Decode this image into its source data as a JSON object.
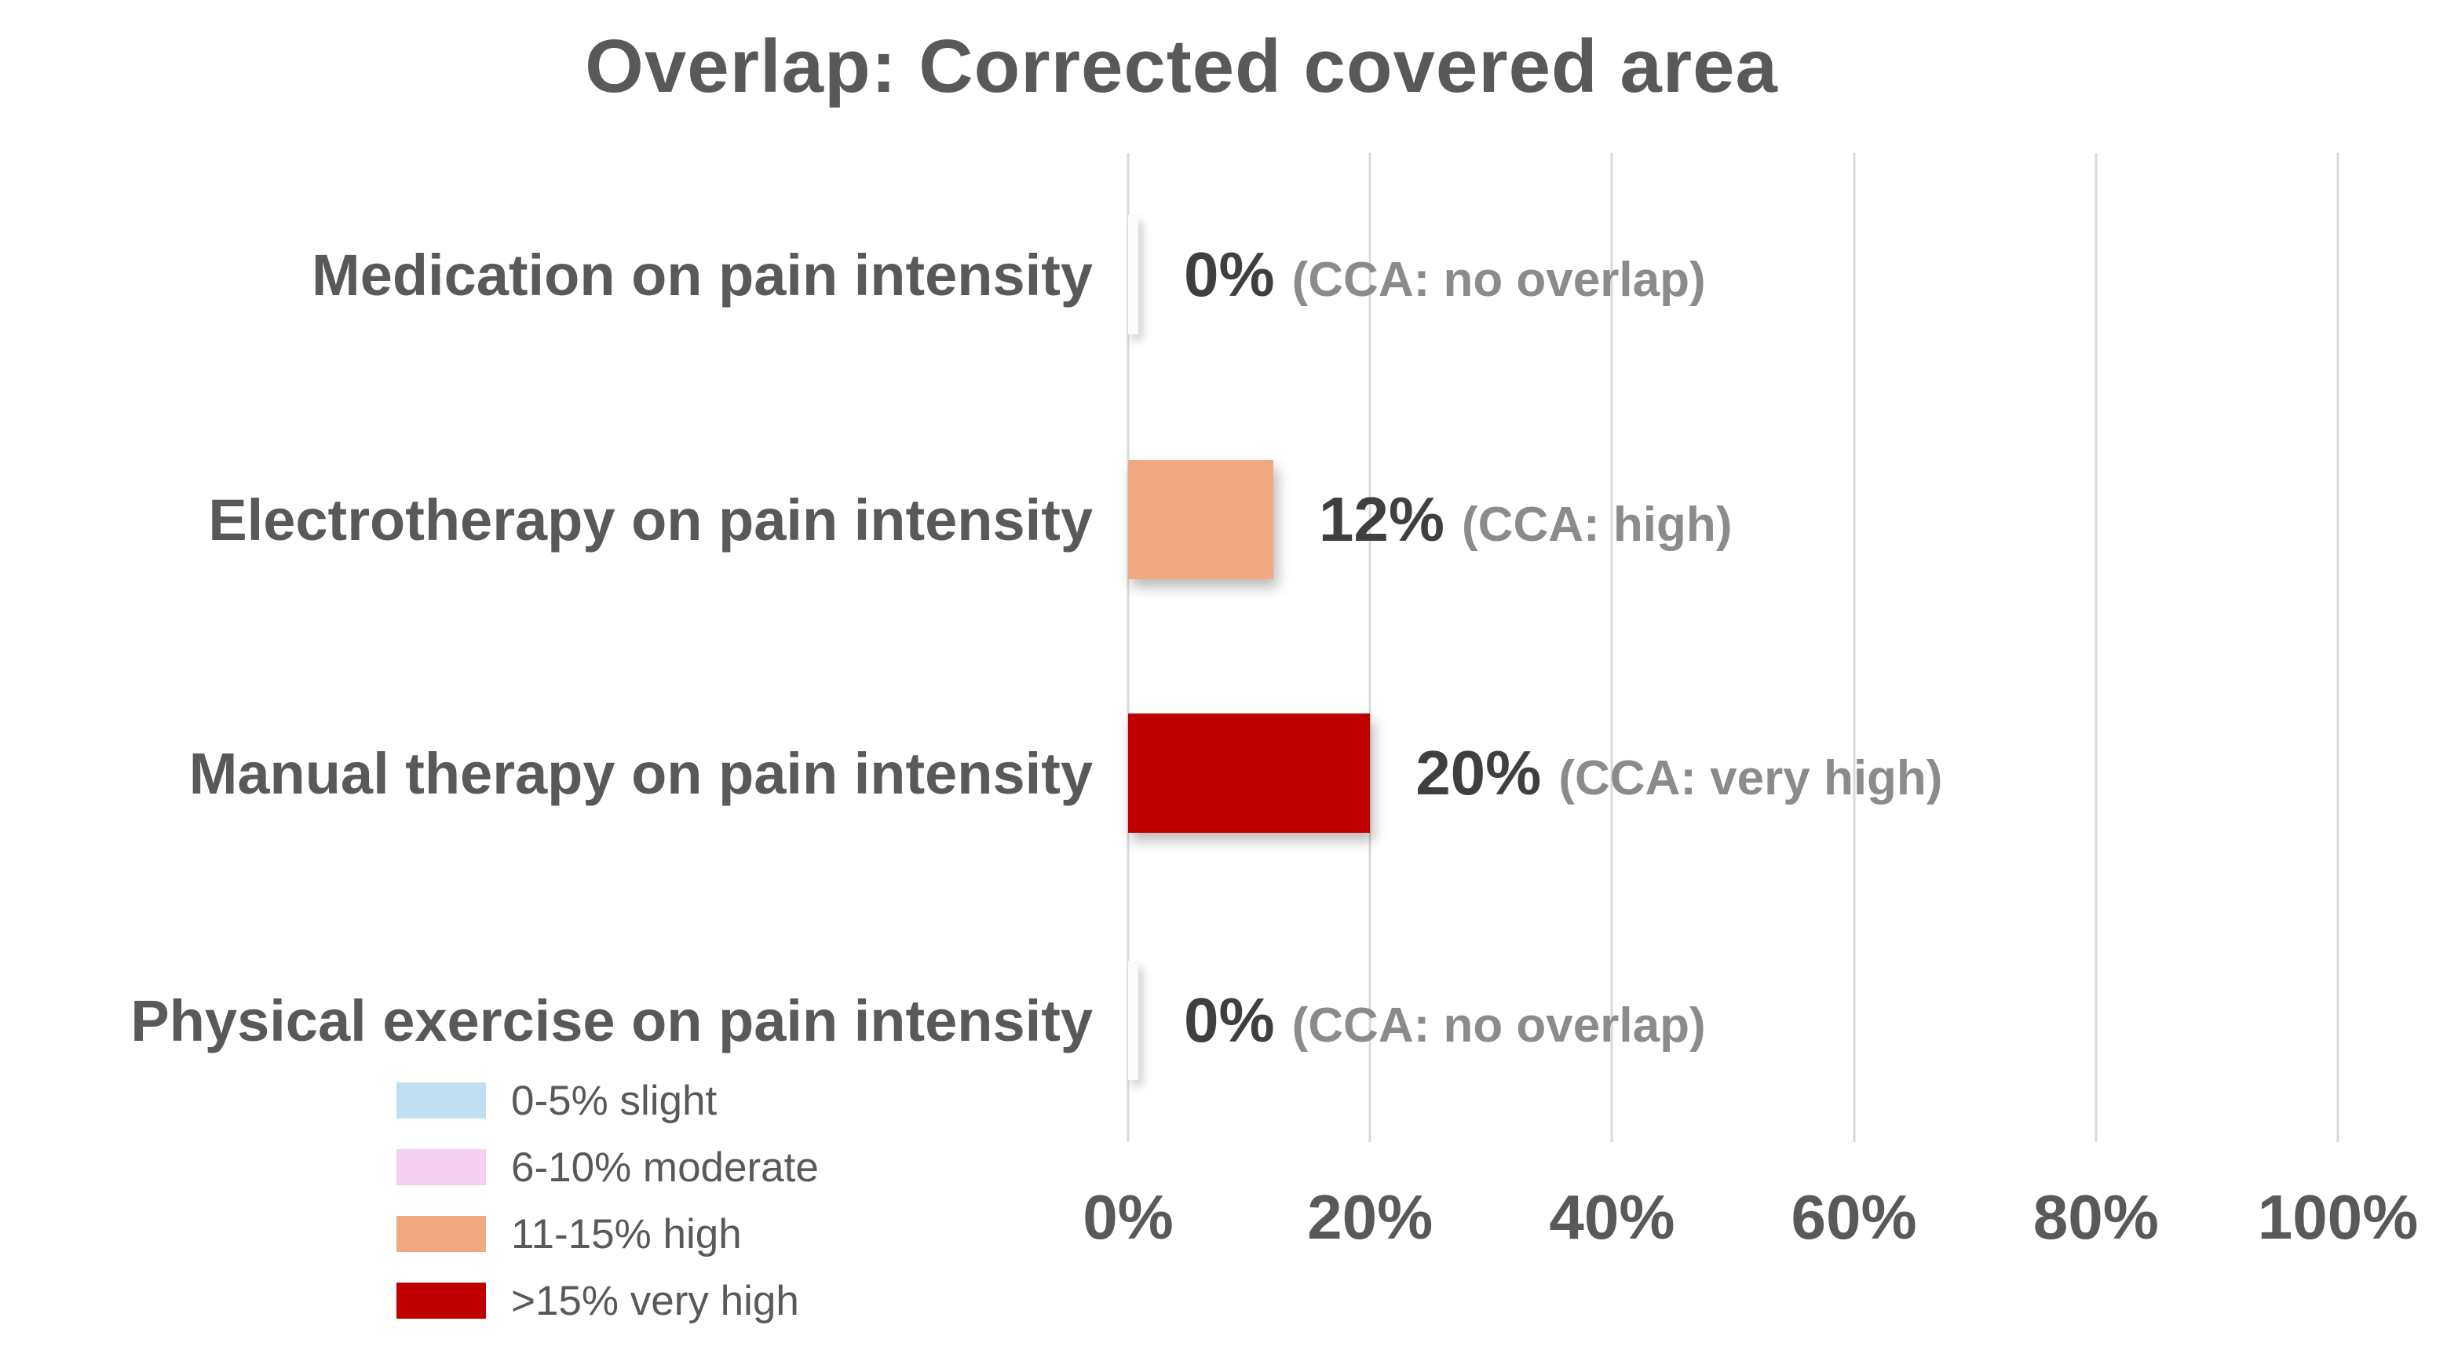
{
  "title": "Overlap: Corrected covered area",
  "colors": {
    "slight": "#BEE0F0",
    "moderate": "#F3D0EE",
    "high": "#F1A983",
    "very_high": "#C00000",
    "text_dark": "#595959",
    "value_text": "#3F3F3F",
    "annotation_text": "#8B8B8B",
    "gridline": "#D9D9D9"
  },
  "chart_data": {
    "type": "bar",
    "orientation": "horizontal",
    "title": "Overlap: Corrected covered area",
    "categories": [
      "Medication on pain intensity",
      "Electrotherapy on pain intensity",
      "Manual therapy on pain intensity",
      "Physical exercise on pain intensity"
    ],
    "values": [
      0,
      12,
      20,
      0
    ],
    "value_labels": [
      "0%",
      "12%",
      "20%",
      "0%"
    ],
    "annotations": [
      "(CCA: no overlap)",
      "(CCA: high)",
      "(CCA: very high)",
      "(CCA: no overlap)"
    ],
    "bar_colors": [
      "none",
      "#F1A983",
      "#C00000",
      "none"
    ],
    "xlabel": "",
    "ylabel": "",
    "xlim": [
      0,
      100
    ],
    "x_ticks": [
      "0%",
      "20%",
      "40%",
      "60%",
      "80%",
      "100%"
    ],
    "grid": "vertical",
    "legend_position": "bottom-left",
    "legend": [
      {
        "label": "0-5% slight",
        "color": "#BEE0F0"
      },
      {
        "label": "6-10% moderate",
        "color": "#F3D0EE"
      },
      {
        "label": "11-15% high",
        "color": "#F1A983"
      },
      {
        "label": ">15% very high",
        "color": "#C00000"
      }
    ]
  }
}
